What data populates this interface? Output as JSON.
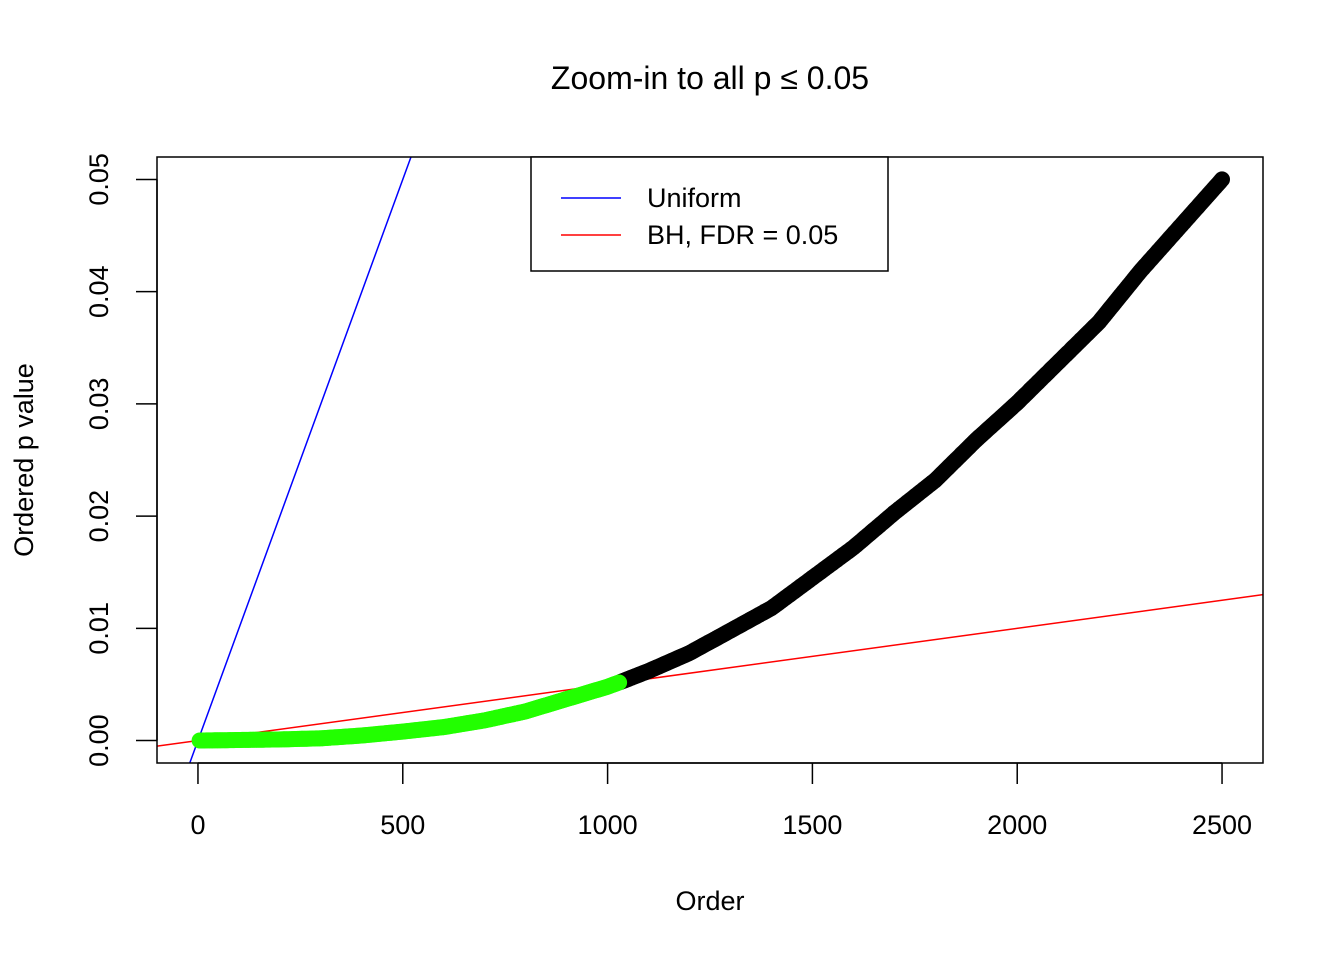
{
  "chart_data": {
    "type": "scatter",
    "title": "Zoom-in to all p ≤ 0.05",
    "xlabel": "Order",
    "ylabel": "Ordered p value",
    "xlim": [
      -100,
      2600
    ],
    "ylim": [
      -0.002,
      0.052
    ],
    "xticks": [
      0,
      500,
      1000,
      1500,
      2000,
      2500
    ],
    "yticks": [
      0.0,
      0.01,
      0.02,
      0.03,
      0.04,
      0.05
    ],
    "xtick_labels": [
      "0",
      "500",
      "1000",
      "1500",
      "2000",
      "2500"
    ],
    "ytick_labels": [
      "0.00",
      "0.01",
      "0.02",
      "0.03",
      "0.04",
      "0.05"
    ],
    "grid": false,
    "legend_position": "top-center",
    "legend": [
      {
        "label": "Uniform",
        "color": "#0000ff"
      },
      {
        "label": "BH, FDR = 0.05",
        "color": "#ff0000"
      }
    ],
    "lines": [
      {
        "name": "Uniform",
        "color": "#0000ff",
        "slope": 0.0001,
        "intercept": 0
      },
      {
        "name": "BH, FDR = 0.05",
        "color": "#ff0000",
        "slope": 5e-06,
        "intercept": 0
      }
    ],
    "points": {
      "n": 2500,
      "significant_count": 1030,
      "significant_color": "#22ff00",
      "other_color": "#000000",
      "curve": {
        "x": [
          0,
          100,
          200,
          300,
          400,
          500,
          600,
          700,
          800,
          900,
          1000,
          1030,
          1100,
          1200,
          1300,
          1400,
          1500,
          1600,
          1700,
          1800,
          1900,
          2000,
          2100,
          2200,
          2300,
          2400,
          2500
        ],
        "y": [
          0.0,
          5e-05,
          0.0001,
          0.0002,
          0.00045,
          0.0008,
          0.0012,
          0.0018,
          0.0026,
          0.0037,
          0.0048,
          0.0052,
          0.0062,
          0.0078,
          0.0098,
          0.0118,
          0.0145,
          0.0172,
          0.0203,
          0.0232,
          0.0268,
          0.0301,
          0.0337,
          0.0373,
          0.0418,
          0.0459,
          0.05
        ]
      }
    }
  }
}
